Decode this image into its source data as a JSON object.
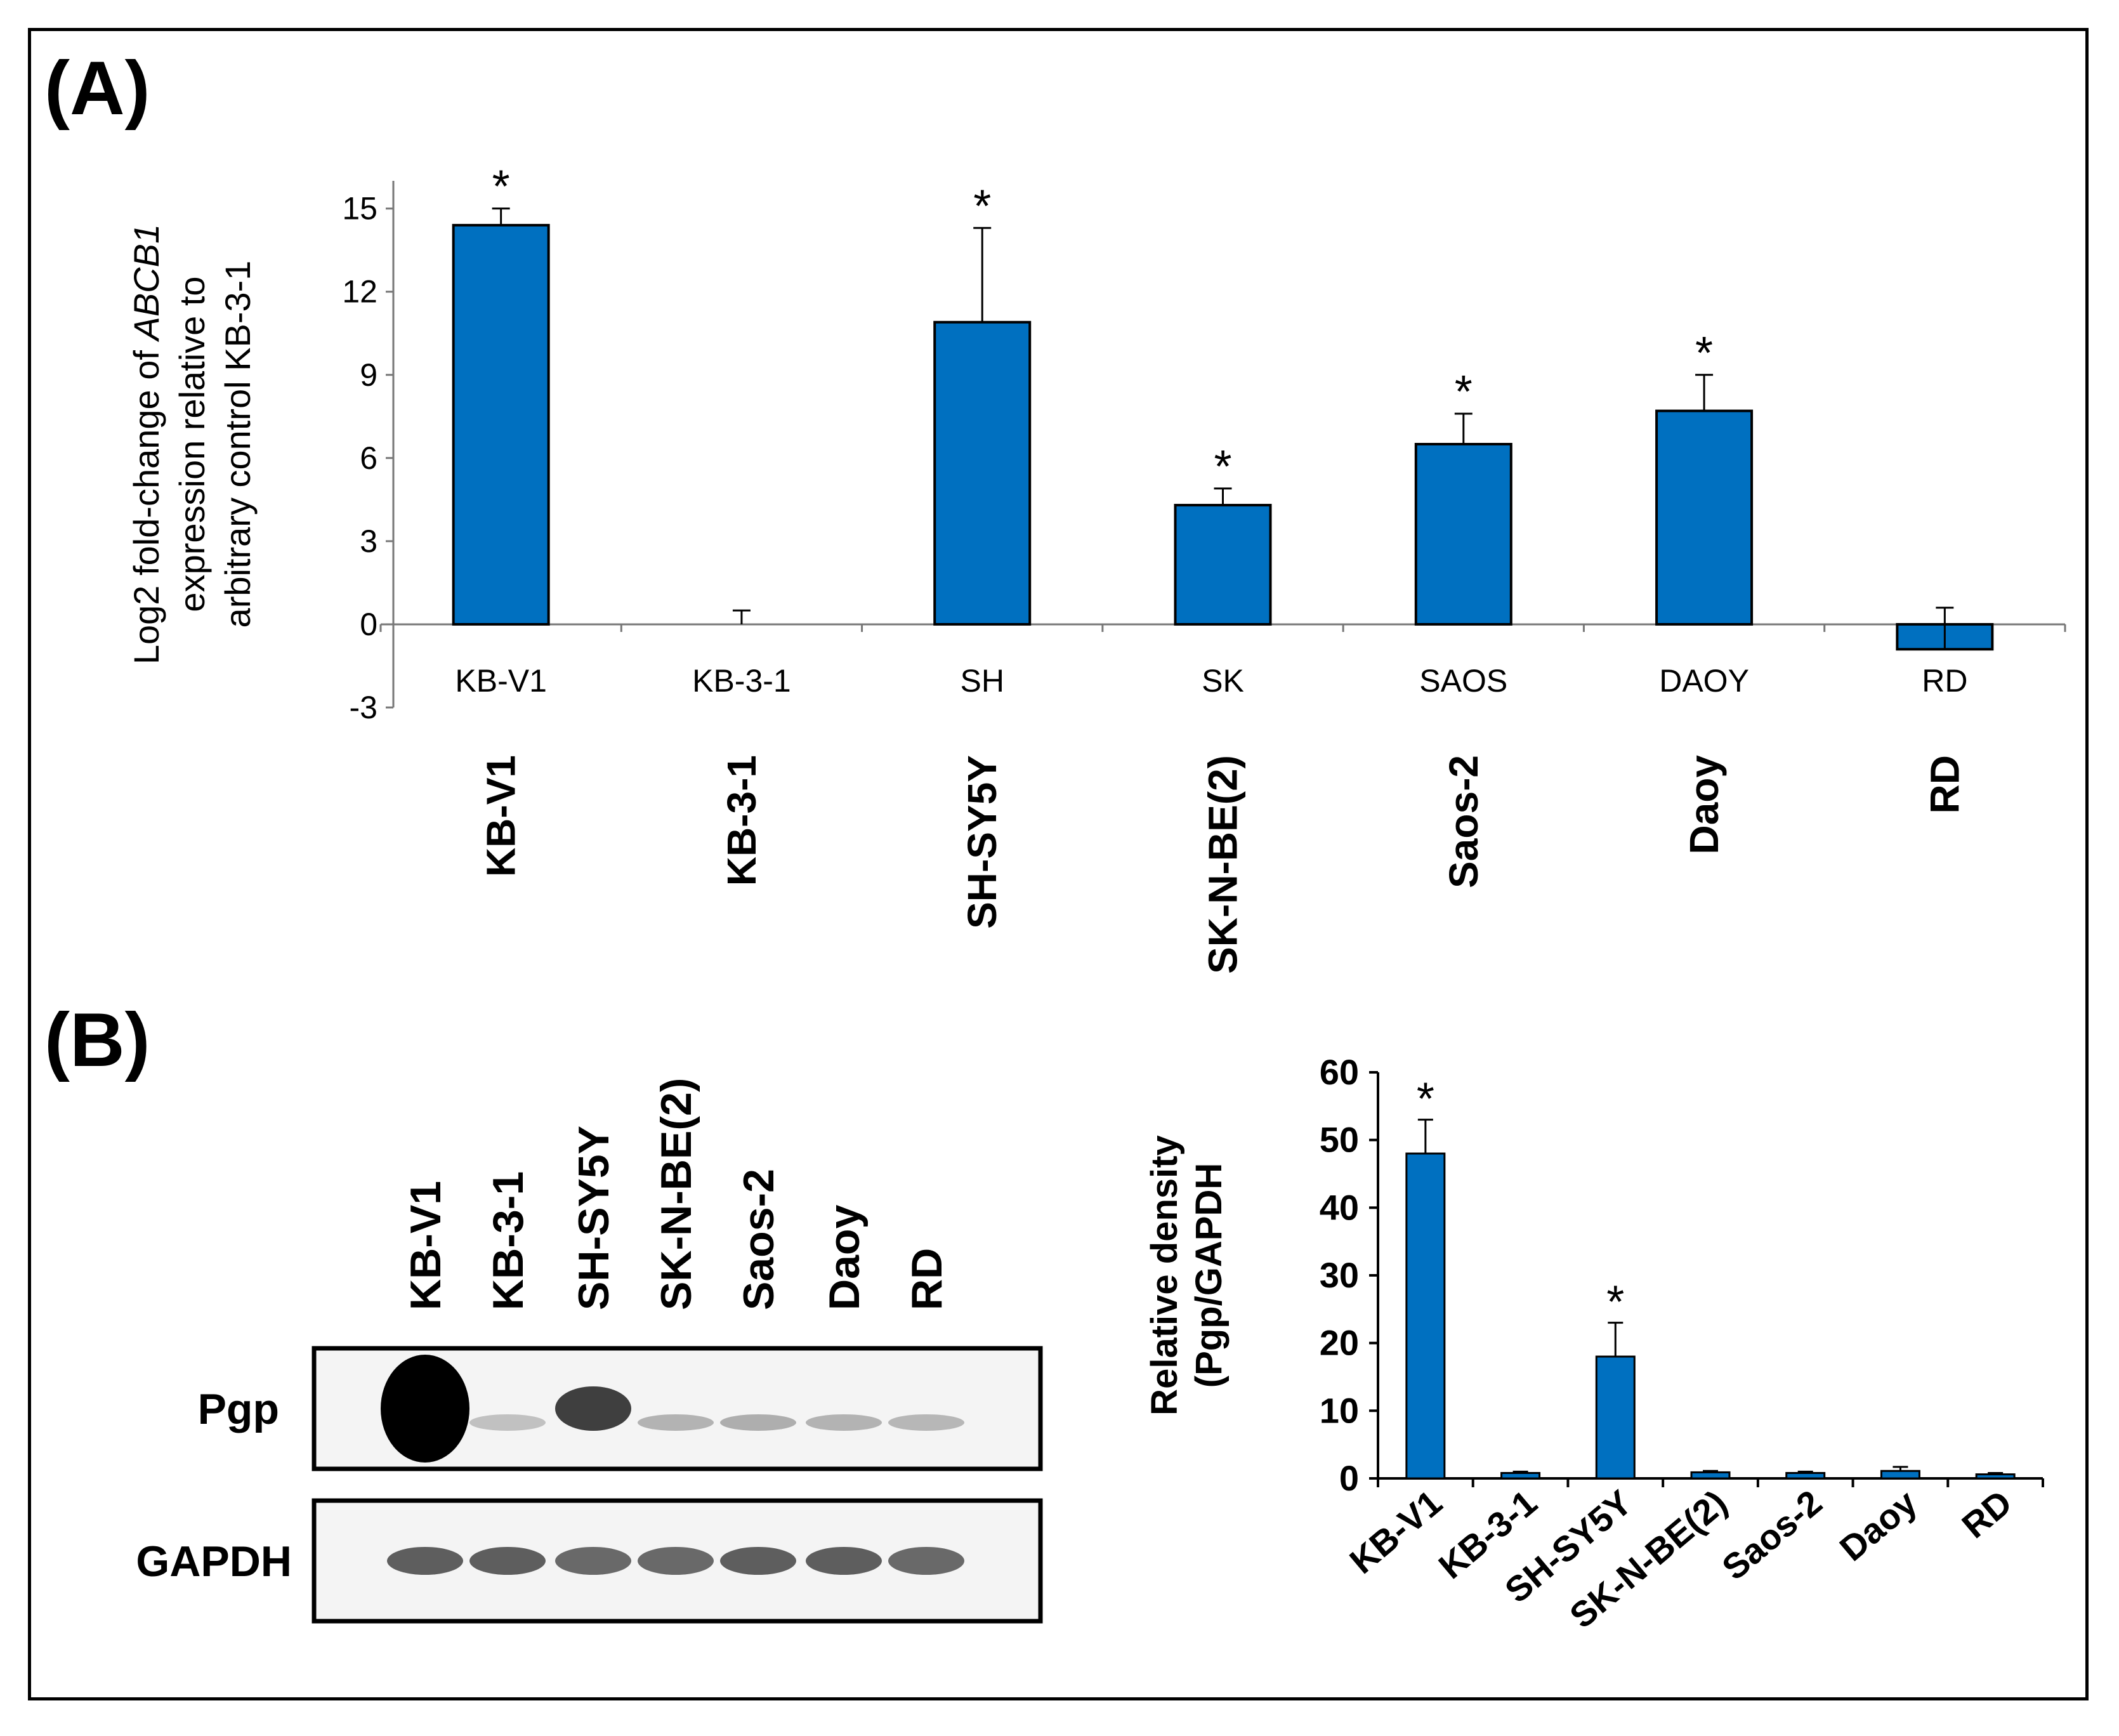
{
  "panel_a_label": "(A)",
  "panel_b_label": "(B)",
  "chart_data": [
    {
      "type": "bar",
      "panel": "A",
      "ylabel_lines": [
        "Log2 fold-change of ABCB1",
        "expression relative to",
        "arbitrary control KB-3-1"
      ],
      "ylabel_gene": "ABCB1",
      "ylim": [
        -3,
        16
      ],
      "yticks": [
        "-3",
        "0",
        "3",
        "6",
        "9",
        "12",
        "15"
      ],
      "categories": [
        "KB-V1",
        "KB-3-1",
        "SH",
        "SK",
        "SAOS",
        "DAOY",
        "RD"
      ],
      "cell_lines": [
        "KB-V1",
        "KB-3-1",
        "SH-SY5Y",
        "SK-N-BE(2)",
        "Saos-2",
        "Daoy",
        "RD"
      ],
      "values": [
        14.4,
        0,
        10.9,
        4.3,
        6.5,
        7.7,
        -0.9
      ],
      "errors": [
        0.6,
        0.5,
        3.4,
        0.6,
        1.1,
        1.3,
        1.5
      ],
      "significance": [
        "*",
        "",
        "*",
        "*",
        "*",
        "*",
        ""
      ],
      "bar_color": "#0070C0"
    },
    {
      "type": "bar",
      "panel": "B",
      "ylabel_lines": [
        "Relative density",
        "(Pgp/GAPDH"
      ],
      "ylim": [
        0,
        60
      ],
      "yticks": [
        "0",
        "10",
        "20",
        "30",
        "40",
        "50",
        "60"
      ],
      "categories": [
        "KB-V1",
        "KB-3-1",
        "SH-SY5Y",
        "SK-N-BE(2)",
        "Saos-2",
        "Daoy",
        "RD"
      ],
      "values": [
        48,
        0.8,
        18,
        0.9,
        0.8,
        1.1,
        0.6
      ],
      "errors": [
        5,
        0.2,
        5,
        0.2,
        0.2,
        0.6,
        0.2
      ],
      "significance": [
        "*",
        "",
        "*",
        "",
        "",
        "",
        ""
      ],
      "bar_color": "#0070C0"
    }
  ],
  "blot": {
    "lanes": [
      "KB-V1",
      "KB-3-1",
      "SH-SY5Y",
      "SK-N-BE(2)",
      "Saos-2",
      "Daoy",
      "RD"
    ],
    "rows": [
      {
        "label": "Pgp",
        "intensity": [
          1.0,
          0.08,
          0.7,
          0.15,
          0.17,
          0.15,
          0.13
        ]
      },
      {
        "label": "GAPDH",
        "intensity": [
          0.55,
          0.55,
          0.5,
          0.5,
          0.55,
          0.55,
          0.5
        ]
      }
    ]
  }
}
